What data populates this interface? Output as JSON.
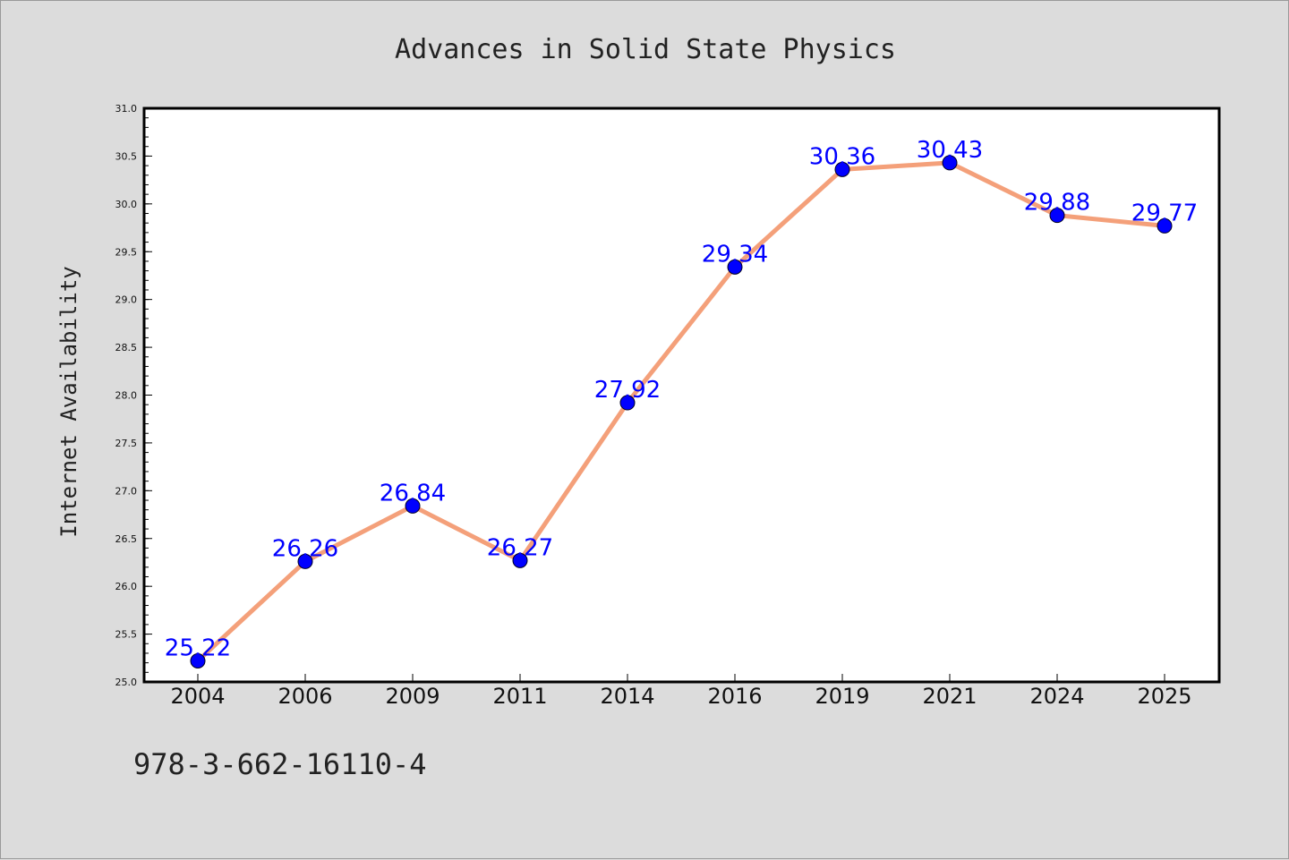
{
  "footnote": "978-3-662-16110-4",
  "colors": {
    "background": "#dcdcdc",
    "plot_area": "#ffffff",
    "line": "#f4a07a",
    "marker": "#0000ff",
    "data_label": "#0000ff"
  },
  "chart_data": {
    "type": "line",
    "title": "Advances in Solid State Physics",
    "xlabel": "",
    "ylabel": "Internet Availability",
    "categories": [
      "2004",
      "2006",
      "2009",
      "2011",
      "2014",
      "2016",
      "2019",
      "2021",
      "2024",
      "2025"
    ],
    "series": [
      {
        "values": [
          25.22,
          26.26,
          26.84,
          26.27,
          27.92,
          29.34,
          30.36,
          30.43,
          29.88,
          29.77
        ]
      }
    ],
    "data_labels": [
      "25.22",
      "26.26",
      "26.84",
      "26.27",
      "27.92",
      "29.34",
      "30.36",
      "30.43",
      "29.88",
      "29.77"
    ],
    "ylim": [
      25.0,
      31.0
    ],
    "yticks": [
      "25.0",
      "25.5",
      "26.0",
      "26.5",
      "27.0",
      "27.5",
      "28.0",
      "28.5",
      "29.0",
      "29.5",
      "30.0",
      "30.5",
      "31.0"
    ],
    "grid": false,
    "legend": "none"
  }
}
